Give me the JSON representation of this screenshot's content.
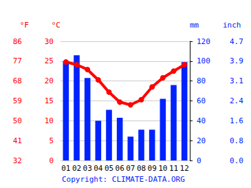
{
  "chart_data": {
    "type": "bar",
    "categories": [
      "01",
      "02",
      "03",
      "04",
      "05",
      "06",
      "07",
      "08",
      "09",
      "10",
      "11",
      "12"
    ],
    "series": [
      {
        "type": "bar",
        "axis": "y2",
        "color": "#0022ff",
        "values": [
          100,
          106,
          83,
          40,
          51,
          43,
          24,
          31,
          31,
          62,
          76,
          99
        ]
      },
      {
        "type": "line",
        "axis": "y",
        "color": "#ff0000",
        "marker": "circle",
        "values": [
          24.8,
          24.1,
          22.9,
          20.3,
          17.2,
          14.7,
          14.0,
          15.3,
          18.5,
          20.8,
          22.5,
          24.1
        ]
      }
    ],
    "ylabel": "°C",
    "ylim": [
      0,
      30
    ],
    "yticks": [
      0,
      5,
      10,
      15,
      20,
      25,
      30
    ],
    "y2label": "mm",
    "y2lim": [
      0,
      120
    ],
    "y2ticks": [
      0,
      20,
      40,
      60,
      80,
      100,
      120
    ],
    "y3label": "°F",
    "y3lim": [
      32,
      86
    ],
    "y3ticks": [
      32,
      41,
      50,
      59,
      68,
      77,
      86
    ],
    "y4label": "inch",
    "y4lim": [
      0,
      4.724
    ],
    "y4ticks": [
      {
        "value": 0,
        "label": "0.0"
      },
      {
        "value": 0.787,
        "label": "0.8"
      },
      {
        "value": 1.575,
        "label": "1.6"
      },
      {
        "value": 2.362,
        "label": "2.4"
      },
      {
        "value": 3.15,
        "label": "3.1"
      },
      {
        "value": 3.937,
        "label": "3.9"
      },
      {
        "value": 4.724,
        "label": "4.7"
      }
    ],
    "grid": true,
    "footer": "Copyright: CLIMATE-DATA.ORG"
  }
}
